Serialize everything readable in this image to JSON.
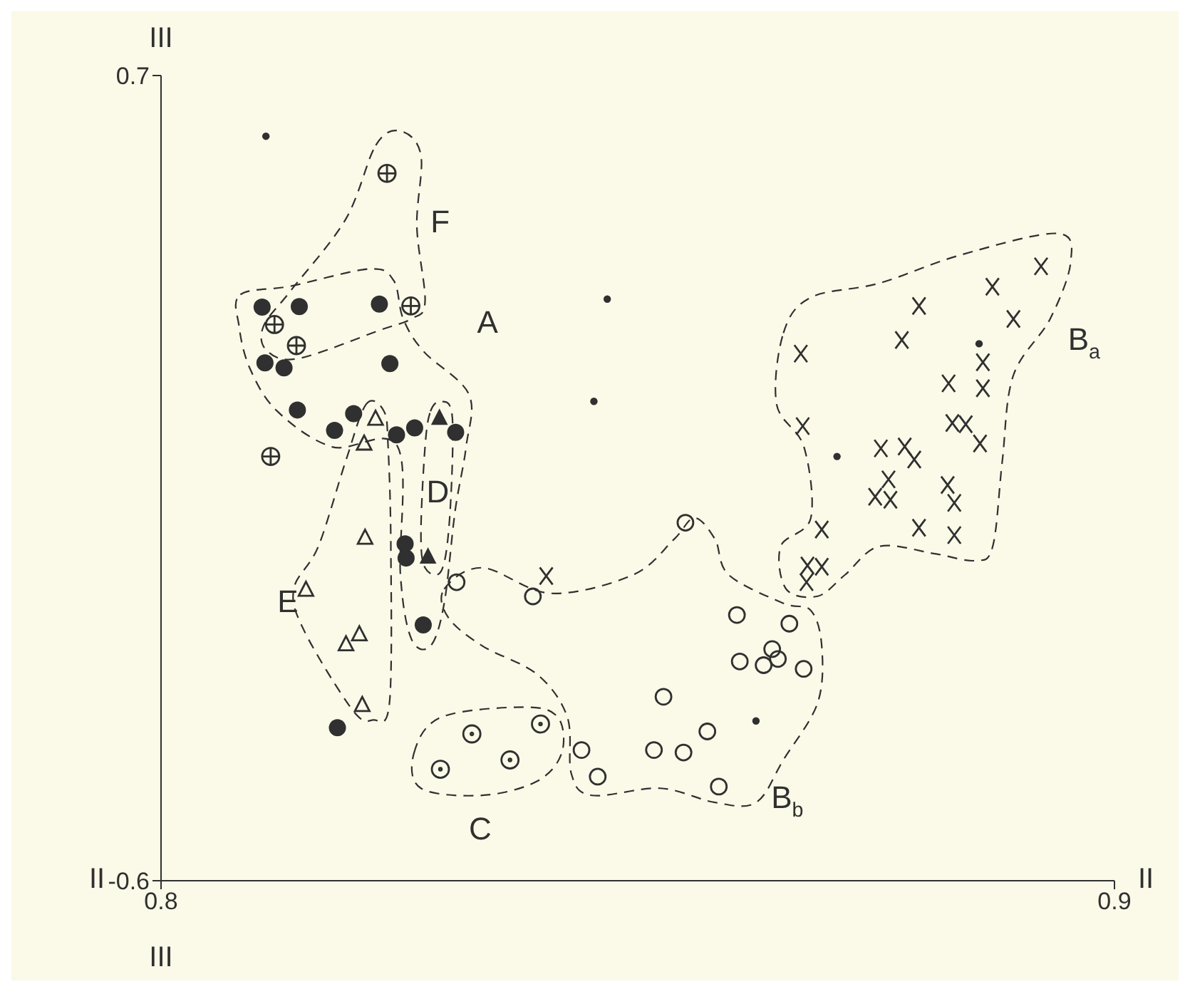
{
  "chart_data": {
    "type": "scatter",
    "xlabel": "II",
    "ylabel": "III",
    "xlim": [
      0.8,
      0.9
    ],
    "ylim": [
      -0.6,
      0.7
    ],
    "xticks": [
      0.8,
      0.9
    ],
    "yticks": [
      -0.6,
      0.7
    ],
    "series": [
      {
        "marker": "circle",
        "color": "#303030",
        "x": [
          0.811,
          0.8468,
          0.8454,
          0.8858,
          0.8709,
          0.8624
        ],
        "values": [
          0.602,
          0.339,
          0.174,
          0.267,
          0.085,
          -0.342
        ]
      },
      {
        "marker": "circle",
        "color": "#303030",
        "x": [
          0.8106,
          0.8145,
          0.8229,
          0.8109,
          0.8129,
          0.824,
          0.8143,
          0.8202,
          0.8182,
          0.8247,
          0.8266,
          0.8309,
          0.8256,
          0.8257,
          0.8275,
          0.8185
        ],
        "values": [
          0.326,
          0.327,
          0.331,
          0.236,
          0.228,
          0.235,
          0.16,
          0.154,
          0.127,
          0.12,
          0.131,
          0.124,
          -0.056,
          -0.079,
          -0.187,
          -0.353
        ]
      },
      {
        "color": "#303030",
        "x": [
          0.8237,
          0.8262,
          0.8119,
          0.8142,
          0.8115
        ],
        "values": [
          0.542,
          0.328,
          0.298,
          0.264,
          0.085
        ]
      },
      {
        "marker": "triangle",
        "color": "#303030",
        "x": [
          0.8225,
          0.8213,
          0.8214,
          0.8152,
          0.8194,
          0.8208,
          0.8211
        ],
        "values": [
          0.145,
          0.105,
          -0.047,
          -0.131,
          -0.219,
          -0.203,
          -0.317
        ]
      },
      {
        "marker": "triangle",
        "color": "#303030",
        "x": [
          0.8292,
          0.828
        ],
        "values": [
          0.146,
          -0.078
        ]
      },
      {
        "marker": "circle",
        "color": "#303030",
        "x": [
          0.855,
          0.831,
          0.839,
          0.8441,
          0.8458,
          0.8604,
          0.8659,
          0.8607,
          0.8632,
          0.8641,
          0.8647,
          0.8674,
          0.8527,
          0.8517,
          0.8548,
          0.8573,
          0.8585
        ],
        "values": [
          -0.022,
          -0.118,
          -0.141,
          -0.389,
          -0.432,
          -0.171,
          -0.185,
          -0.246,
          -0.252,
          -0.226,
          -0.242,
          -0.258,
          -0.303,
          -0.389,
          -0.393,
          -0.359,
          -0.448
        ]
      },
      {
        "color": "#303030",
        "x": [
          0.8326,
          0.8398,
          0.8293,
          0.8366
        ],
        "values": [
          -0.363,
          -0.347,
          -0.42,
          -0.405
        ]
      },
      {
        "marker": "cross",
        "color": "#303030",
        "x": [
          0.8404,
          0.8923,
          0.8872,
          0.8795,
          0.8894,
          0.8777,
          0.8671,
          0.8862,
          0.8826,
          0.8862,
          0.8673,
          0.883,
          0.8844,
          0.8859,
          0.8755,
          0.878,
          0.879,
          0.8763,
          0.8749,
          0.8765,
          0.8825,
          0.8832,
          0.8693,
          0.8795,
          0.8832,
          0.8678,
          0.8693,
          0.8677
        ],
        "values": [
          -0.108,
          0.392,
          0.359,
          0.328,
          0.307,
          0.273,
          0.251,
          0.237,
          0.203,
          0.195,
          0.134,
          0.139,
          0.137,
          0.106,
          0.098,
          0.101,
          0.08,
          0.048,
          0.02,
          0.015,
          0.039,
          0.01,
          -0.033,
          -0.03,
          -0.042,
          -0.091,
          -0.093,
          -0.118
        ]
      }
    ],
    "annotations": [
      "F",
      "A",
      "D",
      "E",
      "C",
      "B$_{a}$",
      "B$_{b}$"
    ]
  }
}
